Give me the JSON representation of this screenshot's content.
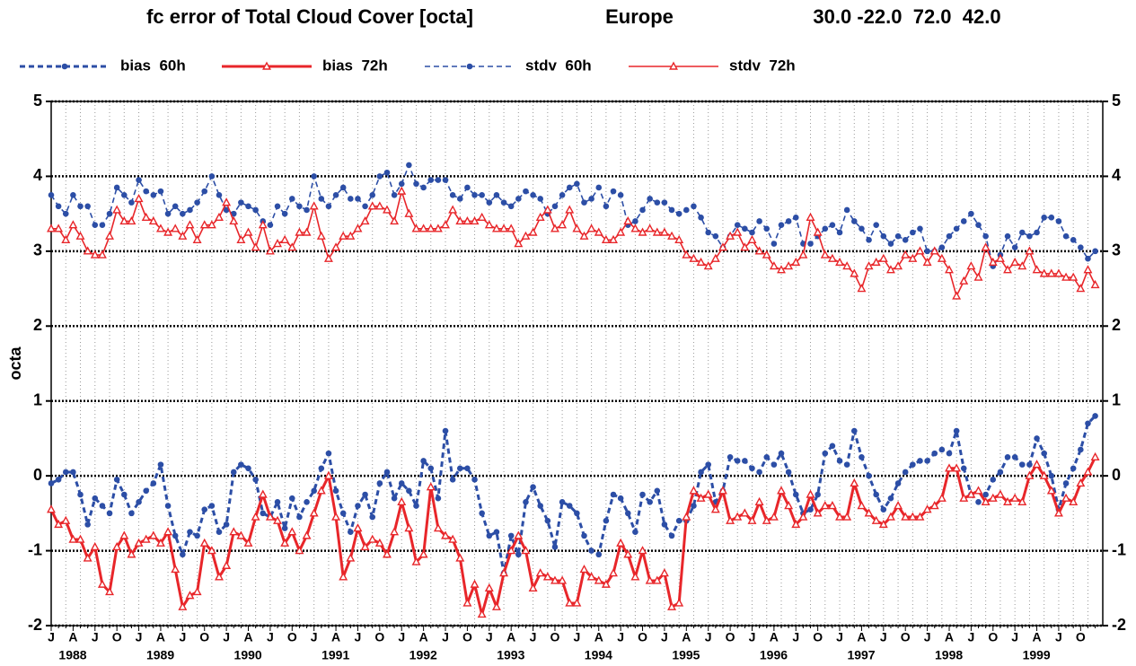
{
  "chart_data": {
    "type": "line",
    "title": "fc error of Total Cloud Cover [octa]",
    "region": "Europe",
    "domain": "30.0 -22.0  72.0  42.0",
    "y_label": "octa",
    "ylim": [
      -2,
      5
    ],
    "yticks": [
      -2,
      -1,
      0,
      1,
      2,
      3,
      4,
      5
    ],
    "grid": true,
    "years": [
      "1988",
      "1989",
      "1990",
      "1991",
      "1992",
      "1993",
      "1994",
      "1995",
      "1996",
      "1997",
      "1998",
      "1999"
    ],
    "categories": [
      "J",
      null,
      null,
      "A",
      null,
      null,
      "J",
      null,
      null,
      "O",
      null,
      null,
      "J",
      null,
      null,
      "A",
      null,
      null,
      "J",
      null,
      null,
      "O",
      null,
      null,
      "J",
      null,
      null,
      "A",
      null,
      null,
      "J",
      null,
      null,
      "O",
      null,
      null,
      "J",
      null,
      null,
      "A",
      null,
      null,
      "J",
      null,
      null,
      "O",
      null,
      null,
      "J",
      null,
      null,
      "A",
      null,
      null,
      "J",
      null,
      null,
      "O",
      null,
      null,
      "J",
      null,
      null,
      "A",
      null,
      null,
      "J",
      null,
      null,
      "O",
      null,
      null,
      "J",
      null,
      null,
      "A",
      null,
      null,
      "J",
      null,
      null,
      "O",
      null,
      null,
      "J",
      null,
      null,
      "A",
      null,
      null,
      "J",
      null,
      null,
      "O",
      null,
      null,
      "J",
      null,
      null,
      "A",
      null,
      null,
      "J",
      null,
      null,
      "O",
      null,
      null,
      "J",
      null,
      null,
      "A",
      null,
      null,
      "J",
      null,
      null,
      "O",
      null,
      null,
      "J",
      null,
      null,
      "A",
      null,
      null,
      "J",
      null,
      null,
      "O",
      null,
      null,
      "J",
      null,
      null,
      "A",
      null,
      null,
      "J",
      null,
      null,
      "O",
      null,
      null
    ],
    "series": [
      {
        "name": "bias  60h",
        "color": "#2c4ea6",
        "dashed": true,
        "marker": "circle",
        "line_width": 3,
        "values": [
          -0.1,
          -0.05,
          0.05,
          0.05,
          -0.25,
          -0.65,
          -0.3,
          -0.4,
          -0.5,
          -0.05,
          -0.25,
          -0.5,
          -0.35,
          -0.2,
          -0.1,
          0.15,
          -0.4,
          -0.8,
          -1.05,
          -0.75,
          -0.8,
          -0.45,
          -0.4,
          -0.75,
          -0.65,
          0.05,
          0.15,
          0.1,
          -0.05,
          -0.5,
          -0.55,
          -0.35,
          -0.7,
          -0.3,
          -0.55,
          -0.35,
          -0.2,
          0.1,
          0.3,
          -0.2,
          -0.5,
          -0.75,
          -0.4,
          -0.25,
          -0.55,
          -0.1,
          0.05,
          -0.3,
          -0.1,
          -0.2,
          -0.4,
          0.2,
          0.1,
          -0.3,
          0.6,
          -0.05,
          0.1,
          0.1,
          -0.05,
          -0.5,
          -0.8,
          -0.75,
          -1.3,
          -0.8,
          -1.05,
          -0.35,
          -0.15,
          -0.4,
          -0.6,
          -0.95,
          -0.35,
          -0.4,
          -0.5,
          -0.8,
          -1.0,
          -1.05,
          -0.6,
          -0.25,
          -0.3,
          -0.5,
          -0.75,
          -0.25,
          -0.35,
          -0.2,
          -0.65,
          -0.8,
          -0.6,
          -0.6,
          -0.4,
          0.05,
          0.15,
          -0.35,
          -0.2,
          0.25,
          0.2,
          0.2,
          0.1,
          0.05,
          0.25,
          0.15,
          0.3,
          0.05,
          -0.25,
          -0.5,
          -0.45,
          -0.25,
          0.3,
          0.4,
          0.2,
          0.15,
          0.6,
          0.25,
          0.0,
          -0.25,
          -0.45,
          -0.3,
          -0.1,
          0.05,
          0.15,
          0.2,
          0.2,
          0.3,
          0.35,
          0.3,
          0.6,
          0.1,
          -0.25,
          -0.35,
          -0.25,
          -0.05,
          0.05,
          0.25,
          0.25,
          0.15,
          0.15,
          0.5,
          0.3,
          0.0,
          -0.45,
          -0.1,
          0.1,
          0.35,
          0.7,
          0.8
        ]
      },
      {
        "name": "bias  72h",
        "color": "#e8262a",
        "dashed": false,
        "marker": "triangle",
        "line_width": 3,
        "values": [
          -0.45,
          -0.65,
          -0.6,
          -0.85,
          -0.85,
          -1.1,
          -0.95,
          -1.45,
          -1.55,
          -0.95,
          -0.8,
          -1.05,
          -0.9,
          -0.85,
          -0.8,
          -0.9,
          -0.75,
          -1.25,
          -1.75,
          -1.6,
          -1.55,
          -0.9,
          -1.0,
          -1.35,
          -1.2,
          -0.75,
          -0.8,
          -0.9,
          -0.55,
          -0.25,
          -0.55,
          -0.6,
          -0.9,
          -0.75,
          -1.0,
          -0.8,
          -0.5,
          -0.2,
          0.0,
          -0.55,
          -1.35,
          -1.1,
          -0.7,
          -0.95,
          -0.85,
          -0.9,
          -1.05,
          -0.75,
          -0.35,
          -0.7,
          -1.15,
          -1.05,
          -0.15,
          -0.7,
          -0.8,
          -0.85,
          -1.1,
          -1.7,
          -1.45,
          -1.85,
          -1.5,
          -1.75,
          -1.3,
          -1.0,
          -0.8,
          -1.0,
          -1.5,
          -1.3,
          -1.35,
          -1.4,
          -1.4,
          -1.7,
          -1.7,
          -1.25,
          -1.35,
          -1.4,
          -1.45,
          -1.3,
          -0.9,
          -1.05,
          -1.35,
          -1.0,
          -1.4,
          -1.4,
          -1.3,
          -1.75,
          -1.7,
          -0.55,
          -0.2,
          -0.3,
          -0.25,
          -0.45,
          -0.2,
          -0.6,
          -0.55,
          -0.5,
          -0.6,
          -0.35,
          -0.6,
          -0.55,
          -0.2,
          -0.4,
          -0.65,
          -0.55,
          -0.25,
          -0.5,
          -0.4,
          -0.4,
          -0.55,
          -0.55,
          -0.1,
          -0.4,
          -0.5,
          -0.6,
          -0.65,
          -0.55,
          -0.4,
          -0.55,
          -0.55,
          -0.55,
          -0.45,
          -0.4,
          -0.3,
          0.1,
          0.1,
          -0.3,
          -0.25,
          -0.2,
          -0.35,
          -0.3,
          -0.25,
          -0.35,
          -0.3,
          -0.35,
          0.0,
          0.15,
          0.0,
          -0.2,
          -0.5,
          -0.3,
          -0.35,
          -0.1,
          0.05,
          0.25
        ]
      },
      {
        "name": "stdv  60h",
        "color": "#2c4ea6",
        "dashed": true,
        "marker": "circle",
        "line_width": 1.6,
        "values": [
          3.75,
          3.6,
          3.5,
          3.75,
          3.6,
          3.6,
          3.35,
          3.35,
          3.5,
          3.85,
          3.75,
          3.65,
          3.95,
          3.8,
          3.75,
          3.8,
          3.5,
          3.6,
          3.5,
          3.55,
          3.65,
          3.8,
          4.0,
          3.75,
          3.55,
          3.5,
          3.65,
          3.6,
          3.55,
          3.4,
          3.35,
          3.6,
          3.5,
          3.7,
          3.6,
          3.55,
          4.0,
          3.7,
          3.6,
          3.75,
          3.85,
          3.7,
          3.7,
          3.6,
          3.75,
          4.0,
          4.05,
          3.75,
          3.9,
          4.15,
          3.9,
          3.85,
          3.95,
          3.95,
          3.95,
          3.75,
          3.7,
          3.85,
          3.75,
          3.75,
          3.65,
          3.75,
          3.65,
          3.6,
          3.7,
          3.8,
          3.75,
          3.7,
          3.5,
          3.6,
          3.75,
          3.85,
          3.9,
          3.65,
          3.7,
          3.85,
          3.6,
          3.8,
          3.75,
          3.35,
          3.4,
          3.55,
          3.7,
          3.65,
          3.65,
          3.55,
          3.5,
          3.55,
          3.6,
          3.45,
          3.25,
          3.2,
          3.05,
          3.2,
          3.35,
          3.3,
          3.25,
          3.4,
          3.3,
          3.1,
          3.35,
          3.4,
          3.45,
          3.1,
          3.1,
          3.2,
          3.3,
          3.35,
          3.25,
          3.55,
          3.4,
          3.3,
          3.15,
          3.35,
          3.2,
          3.1,
          3.2,
          3.15,
          3.25,
          3.3,
          3.0,
          3.0,
          3.05,
          3.2,
          3.3,
          3.4,
          3.5,
          3.35,
          3.2,
          2.8,
          2.95,
          3.2,
          3.05,
          3.25,
          3.2,
          3.25,
          3.45,
          3.45,
          3.4,
          3.2,
          3.15,
          3.05,
          2.9,
          3.0
        ]
      },
      {
        "name": "stdv  72h",
        "color": "#e8262a",
        "dashed": false,
        "marker": "triangle",
        "line_width": 1.6,
        "values": [
          3.3,
          3.3,
          3.15,
          3.35,
          3.2,
          3.0,
          2.95,
          2.95,
          3.2,
          3.55,
          3.4,
          3.4,
          3.7,
          3.45,
          3.4,
          3.3,
          3.25,
          3.3,
          3.2,
          3.35,
          3.15,
          3.35,
          3.35,
          3.45,
          3.65,
          3.4,
          3.15,
          3.25,
          3.05,
          3.35,
          3.0,
          3.1,
          3.15,
          3.05,
          3.25,
          3.25,
          3.6,
          3.2,
          2.9,
          3.05,
          3.2,
          3.2,
          3.3,
          3.4,
          3.6,
          3.6,
          3.55,
          3.4,
          3.8,
          3.5,
          3.3,
          3.3,
          3.3,
          3.3,
          3.35,
          3.55,
          3.4,
          3.4,
          3.4,
          3.45,
          3.35,
          3.3,
          3.3,
          3.3,
          3.1,
          3.2,
          3.25,
          3.45,
          3.55,
          3.3,
          3.35,
          3.55,
          3.3,
          3.2,
          3.3,
          3.25,
          3.15,
          3.15,
          3.25,
          3.4,
          3.3,
          3.25,
          3.3,
          3.25,
          3.25,
          3.2,
          3.15,
          2.95,
          2.9,
          2.85,
          2.8,
          2.9,
          3.05,
          3.2,
          3.25,
          3.05,
          3.15,
          3.0,
          2.95,
          2.8,
          2.75,
          2.8,
          2.85,
          2.95,
          3.45,
          3.25,
          2.95,
          2.9,
          2.85,
          2.8,
          2.7,
          2.5,
          2.8,
          2.85,
          2.9,
          2.75,
          2.8,
          2.95,
          2.9,
          3.0,
          2.85,
          3.0,
          2.9,
          2.75,
          2.4,
          2.6,
          2.8,
          2.65,
          3.05,
          2.85,
          2.9,
          2.75,
          2.85,
          2.8,
          3.0,
          2.75,
          2.7,
          2.7,
          2.7,
          2.65,
          2.65,
          2.5,
          2.75,
          2.55
        ]
      }
    ]
  }
}
